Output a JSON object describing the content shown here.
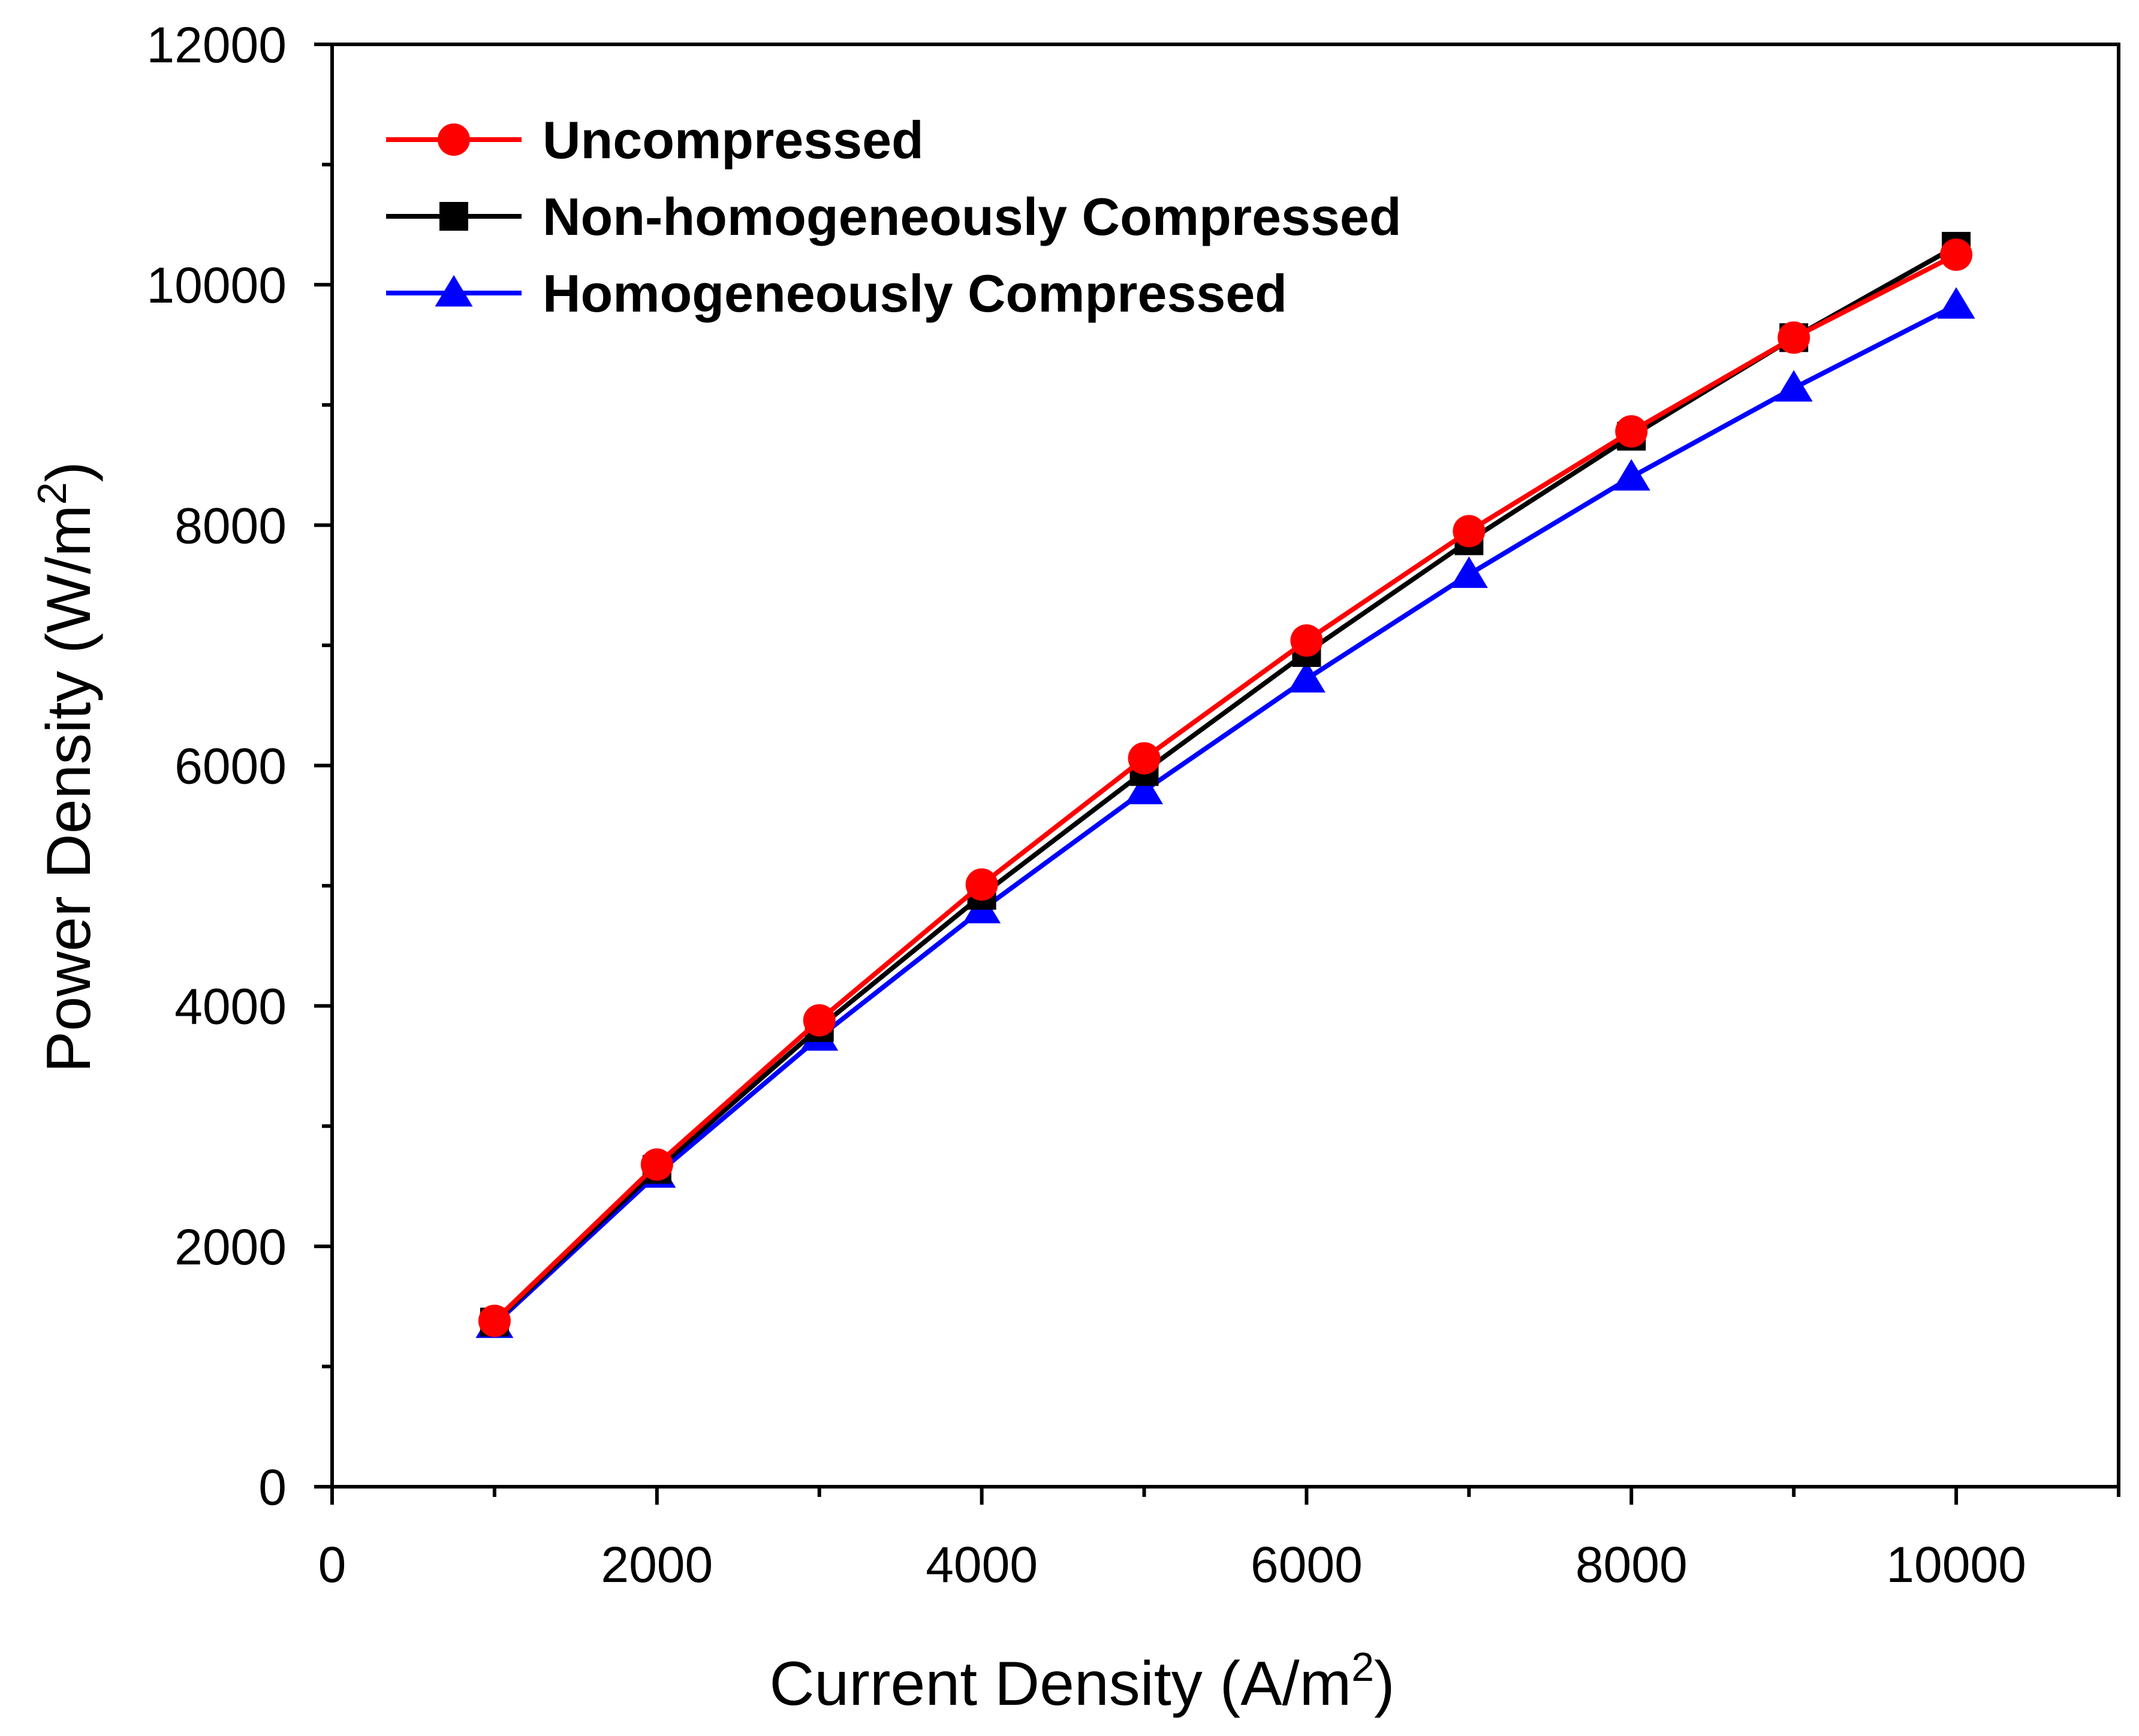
{
  "chart_data": {
    "type": "line",
    "title": "",
    "xlabel": "Current Density (A/m",
    "xlabel_sup": "2",
    "xlabel_suffix": ")",
    "ylabel": "Power Density (W/m",
    "ylabel_sup": "2",
    "ylabel_suffix": ")",
    "xlim": [
      0,
      11000
    ],
    "ylim": [
      0,
      12000
    ],
    "xticks": [
      0,
      2000,
      4000,
      6000,
      8000,
      10000
    ],
    "xtick_labels": [
      "0",
      "2000",
      "4000",
      "6000",
      "8000",
      "10000"
    ],
    "yticks": [
      0,
      2000,
      4000,
      6000,
      8000,
      10000,
      12000
    ],
    "ytick_labels": [
      "0",
      "2000",
      "4000",
      "6000",
      "8000",
      "10000",
      "12000"
    ],
    "grid": false,
    "legend_position": "top-left",
    "x": [
      1000,
      2000,
      3000,
      4000,
      5000,
      6000,
      7000,
      8000,
      9000,
      10000
    ],
    "series": [
      {
        "name": "Homogeneously Compressed",
        "color": "#0000ff",
        "marker": "triangle",
        "values": [
          1350,
          2600,
          3740,
          4800,
          5790,
          6720,
          7590,
          8400,
          9140,
          9830
        ]
      },
      {
        "name": "Non-homogeneously Compressed",
        "color": "#000000",
        "marker": "square",
        "values": [
          1370,
          2640,
          3820,
          4920,
          5950,
          6940,
          7870,
          8740,
          9560,
          10320
        ]
      },
      {
        "name": "Uncompressed",
        "color": "#ff0000",
        "marker": "circle",
        "values": [
          1380,
          2680,
          3880,
          5010,
          6060,
          7040,
          7950,
          8780,
          9560,
          10250
        ]
      }
    ],
    "legend_order": [
      "Uncompressed",
      "Non-homogeneously Compressed",
      "Homogeneously Compressed"
    ]
  }
}
